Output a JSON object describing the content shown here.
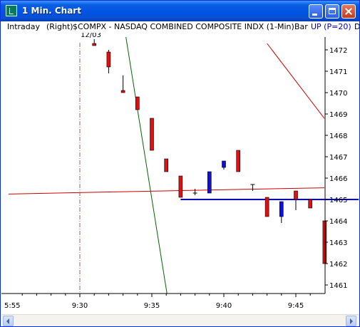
{
  "window": {
    "title": "1 Min. Chart",
    "icon": "chart-app-icon",
    "buttons": {
      "minimize": "minimize-icon",
      "maximize": "maximize-icon",
      "close": "close-icon"
    }
  },
  "infobar": {
    "mode": "Intraday",
    "scale": "(Right)",
    "symbol": "$COMPX - NASDAQ COMBINED COMPOSITE INDX  (1-Min)",
    "style": "Bar",
    "study": "UP (P=20)",
    "extra": "D"
  },
  "chart_data": {
    "type": "candlestick",
    "date_marker": "12/03",
    "x_tick_labels": [
      {
        "t": -35,
        "label": "5:55"
      },
      {
        "t": 0,
        "label": "9:30"
      },
      {
        "t": 5,
        "label": "9:35"
      },
      {
        "t": 10,
        "label": "9:40"
      },
      {
        "t": 15,
        "label": "9:45"
      }
    ],
    "x_range_minutes_from_930": [
      -35.5,
      17.2
    ],
    "y_ticks": [
      1461,
      1462,
      1463,
      1464,
      1465,
      1466,
      1467,
      1468,
      1469,
      1470,
      1471,
      1472
    ],
    "y_range": [
      1460.6,
      1472.6
    ],
    "y_axis_side": "right",
    "grid": false,
    "candles": [
      {
        "t": 1,
        "open": 1472.3,
        "high": 1472.5,
        "low": 1472.2,
        "close": 1472.2,
        "color": "red"
      },
      {
        "t": 2,
        "open": 1471.9,
        "high": 1472.0,
        "low": 1470.9,
        "close": 1471.2,
        "color": "red"
      },
      {
        "t": 3,
        "open": 1470.1,
        "high": 1470.8,
        "low": 1470.0,
        "close": 1470.0,
        "color": "red"
      },
      {
        "t": 4,
        "open": 1469.8,
        "high": 1469.8,
        "low": 1469.2,
        "close": 1469.2,
        "color": "red"
      },
      {
        "t": 5,
        "open": 1468.8,
        "high": 1468.8,
        "low": 1467.3,
        "close": 1467.3,
        "color": "red"
      },
      {
        "t": 6,
        "open": 1466.9,
        "high": 1466.9,
        "low": 1466.3,
        "close": 1466.3,
        "color": "red"
      },
      {
        "t": 7,
        "open": 1466.1,
        "high": 1466.1,
        "low": 1465.1,
        "close": 1465.1,
        "color": "red"
      },
      {
        "t": 8,
        "open": 1465.3,
        "high": 1465.5,
        "low": 1465.2,
        "close": 1465.3,
        "color": "neutral"
      },
      {
        "t": 9,
        "open": 1465.3,
        "high": 1466.3,
        "low": 1465.3,
        "close": 1466.3,
        "color": "blue"
      },
      {
        "t": 10,
        "open": 1466.5,
        "high": 1466.8,
        "low": 1466.4,
        "close": 1466.8,
        "color": "blue"
      },
      {
        "t": 11,
        "open": 1467.3,
        "high": 1467.3,
        "low": 1466.3,
        "close": 1466.3,
        "color": "red"
      },
      {
        "t": 12,
        "open": 1465.7,
        "high": 1465.7,
        "low": 1465.4,
        "close": 1465.7,
        "color": "neutral"
      },
      {
        "t": 13,
        "open": 1465.1,
        "high": 1465.1,
        "low": 1464.2,
        "close": 1464.2,
        "color": "red"
      },
      {
        "t": 14,
        "open": 1464.2,
        "high": 1464.9,
        "low": 1463.9,
        "close": 1464.9,
        "color": "blue"
      },
      {
        "t": 15,
        "open": 1465.4,
        "high": 1465.4,
        "low": 1464.5,
        "close": 1465.0,
        "color": "red"
      },
      {
        "t": 16,
        "open": 1465.0,
        "high": 1465.0,
        "low": 1464.6,
        "close": 1464.6,
        "color": "red"
      },
      {
        "t": 17,
        "open": 1464.0,
        "high": 1464.0,
        "low": 1462.0,
        "close": 1462.0,
        "color": "red"
      }
    ],
    "lines": [
      {
        "kind": "trendline",
        "color": "#006600",
        "from": {
          "t": 3.2,
          "y": 1472.6
        },
        "to": {
          "t": 6.05,
          "y": 1460.6
        }
      },
      {
        "kind": "trendline",
        "color": "#cc0000",
        "from": {
          "t": -35.5,
          "y": 1464.85
        },
        "to": {
          "t": 17.2,
          "y": 1465.55
        }
      },
      {
        "kind": "trendline",
        "color": "#cc0000",
        "from": {
          "t": 13.0,
          "y": 1472.3
        },
        "to": {
          "t": 17.2,
          "y": 1468.6
        }
      },
      {
        "kind": "horizontal",
        "color": "#0000ff",
        "y": 1465.0,
        "from_t": 7.0,
        "to_t": 17.2
      },
      {
        "kind": "vertical",
        "color": "#996666",
        "style": "dashdot",
        "t": 0
      }
    ],
    "colors": {
      "red": "#e01010",
      "blue": "#1010dd",
      "neutral": "#333333",
      "outline": "#000000"
    }
  }
}
